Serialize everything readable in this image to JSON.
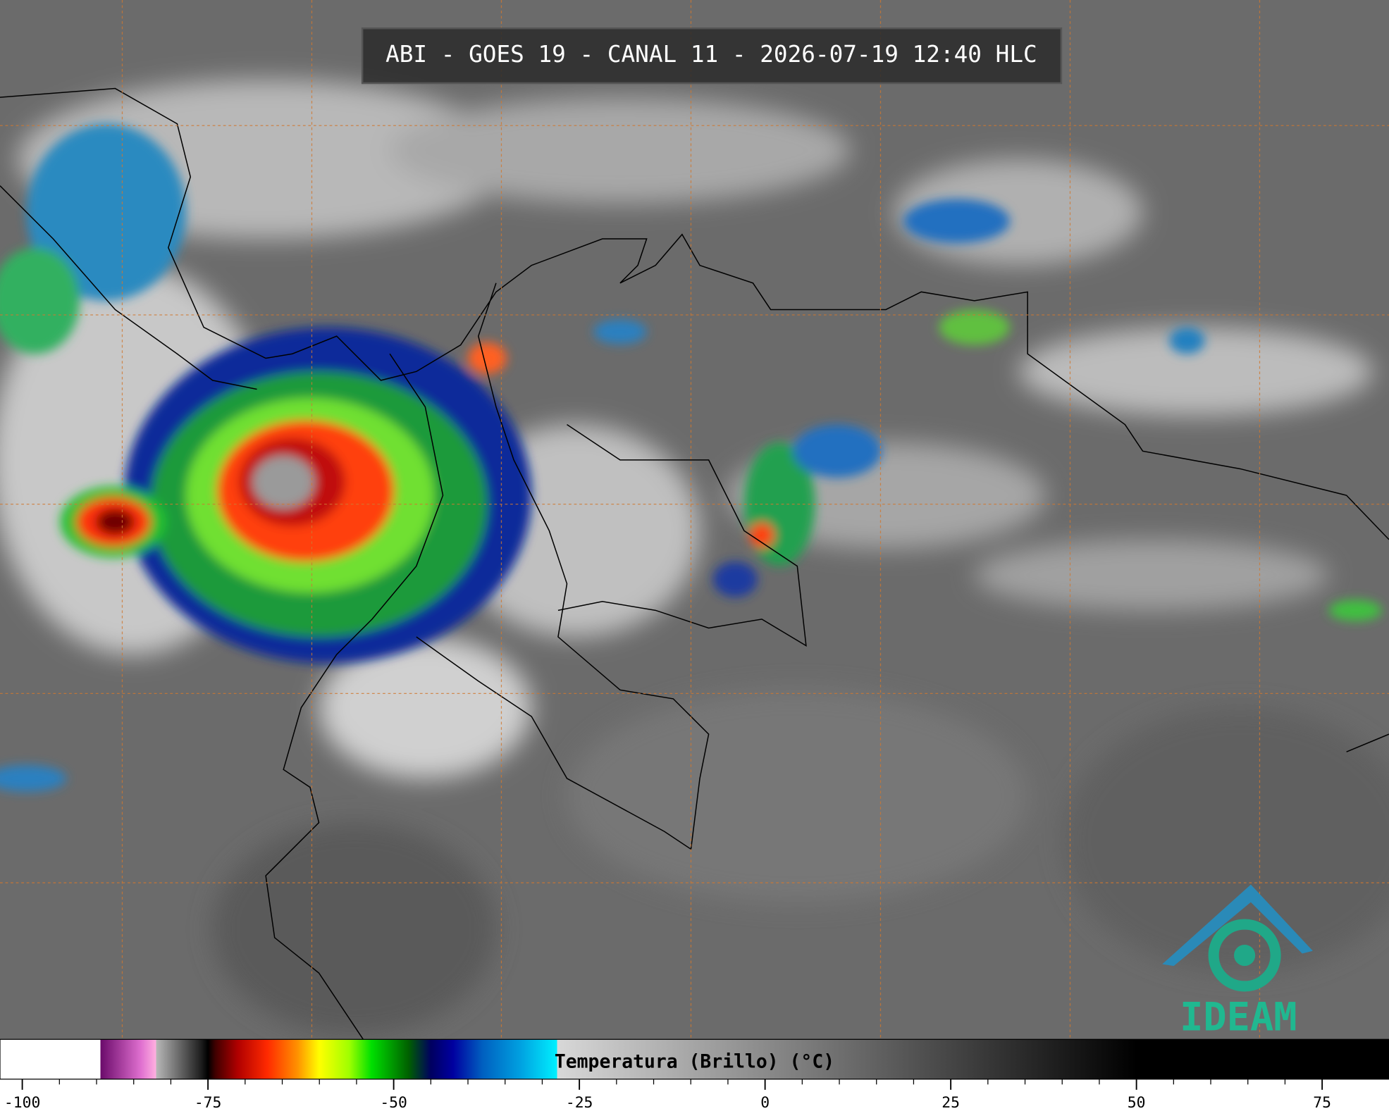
{
  "title": "ABI - GOES 19 - CANAL 11 - 2026-07-19 12:40 HLC",
  "logo": "IDEAM",
  "colorbar": {
    "label": "Temperatura (Brillo) (°C)",
    "range": [
      -103,
      84
    ],
    "ticks": [
      -100,
      -75,
      -50,
      -25,
      0,
      25,
      50,
      75
    ],
    "colormap": [
      {
        "value": -103,
        "color": "#ffffff"
      },
      {
        "value": -89.5,
        "color": "#ffffff"
      },
      {
        "value": -89.5,
        "color": "#6a0a6a"
      },
      {
        "value": -84,
        "color": "#e070d0"
      },
      {
        "value": -82,
        "color": "#ffb0e0"
      },
      {
        "value": -82,
        "color": "#b8b8b8"
      },
      {
        "value": -76,
        "color": "#202020"
      },
      {
        "value": -75,
        "color": "#000000"
      },
      {
        "value": -74,
        "color": "#400000"
      },
      {
        "value": -71,
        "color": "#b00000"
      },
      {
        "value": -67,
        "color": "#ff2a00"
      },
      {
        "value": -63,
        "color": "#ff9000"
      },
      {
        "value": -60,
        "color": "#ffff00"
      },
      {
        "value": -56,
        "color": "#a0ff00"
      },
      {
        "value": -53,
        "color": "#00e000"
      },
      {
        "value": -48,
        "color": "#006000"
      },
      {
        "value": -45,
        "color": "#000060"
      },
      {
        "value": -42,
        "color": "#0000a0"
      },
      {
        "value": -38,
        "color": "#0060c0"
      },
      {
        "value": -33,
        "color": "#00a0e0"
      },
      {
        "value": -28,
        "color": "#00f0ff"
      },
      {
        "value": -28,
        "color": "#d8d8d8"
      },
      {
        "value": 50,
        "color": "#000000"
      },
      {
        "value": 84,
        "color": "#000000"
      }
    ]
  }
}
